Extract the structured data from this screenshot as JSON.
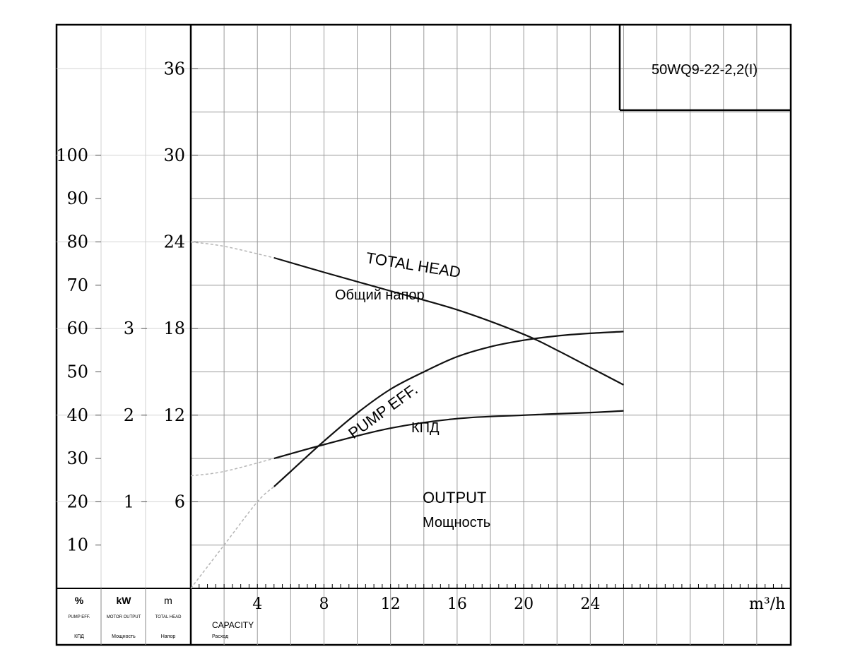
{
  "chart_data": {
    "type": "line",
    "title": "50WQ9-22-2,2(I)",
    "x": {
      "ticks": [
        4,
        8,
        12,
        16,
        20,
        24
      ],
      "unit_label": "m³/h",
      "label_en": "CAPACITY",
      "label_ru": "Расход",
      "range": [
        0,
        36
      ]
    },
    "axes": {
      "eff": {
        "unit": "%",
        "label_en": "PUMP EFF.",
        "label_ru": "КПД",
        "ticks": [
          10,
          20,
          30,
          40,
          50,
          60,
          70,
          80,
          90,
          100
        ],
        "range": [
          0,
          130
        ]
      },
      "power": {
        "unit": "kW",
        "label_en": "MOTOR OUTPUT",
        "label_ru": "Мощность",
        "ticks": [
          1,
          2,
          3
        ],
        "range": [
          0,
          6.5
        ]
      },
      "head": {
        "unit": "m",
        "label_en": "TOTAL HEAD",
        "label_ru": "Напор",
        "ticks": [
          6,
          12,
          18,
          24,
          30,
          36
        ],
        "range": [
          0,
          39
        ]
      }
    },
    "series": [
      {
        "name": "TOTAL HEAD",
        "name_ru": "Общий напор",
        "axis": "head",
        "points": [
          [
            0,
            24
          ],
          [
            2,
            23.7
          ],
          [
            5,
            22.9
          ],
          [
            8,
            21.9
          ],
          [
            12,
            20.6
          ],
          [
            16,
            19.3
          ],
          [
            20,
            17.6
          ],
          [
            22,
            16.5
          ],
          [
            24,
            15.3
          ],
          [
            26,
            14.1
          ]
        ],
        "dashed_until": 5
      },
      {
        "name": "PUMP EFF.",
        "name_ru": "КПД",
        "axis": "eff",
        "points": [
          [
            0,
            0
          ],
          [
            2,
            10
          ],
          [
            4,
            20
          ],
          [
            5,
            23.5
          ],
          [
            6,
            27
          ],
          [
            8,
            34
          ],
          [
            10,
            40.5
          ],
          [
            12,
            46
          ],
          [
            14,
            50
          ],
          [
            16,
            53.5
          ],
          [
            18,
            55.8
          ],
          [
            20,
            57.3
          ],
          [
            22,
            58.3
          ],
          [
            24,
            58.9
          ],
          [
            26,
            59.3
          ]
        ],
        "dashed_until": 4.5
      },
      {
        "name": "OUTPUT",
        "name_ru": "Мощность",
        "axis": "power",
        "points": [
          [
            0,
            1.3
          ],
          [
            2,
            1.35
          ],
          [
            5,
            1.5
          ],
          [
            8,
            1.66
          ],
          [
            12,
            1.85
          ],
          [
            16,
            1.96
          ],
          [
            20,
            2.0
          ],
          [
            24,
            2.03
          ],
          [
            26,
            2.05
          ]
        ],
        "dashed_until": 5
      }
    ],
    "grid": true
  },
  "header_labels": {
    "eff": {
      "unit": "%",
      "en": "PUMP EFF.",
      "ru": "КПД"
    },
    "power": {
      "unit": "kW",
      "en": "MOTOR OUTPUT",
      "ru": "Мощность"
    },
    "head": {
      "unit": "m",
      "en": "TOTAL HEAD",
      "ru": "Напор"
    }
  }
}
